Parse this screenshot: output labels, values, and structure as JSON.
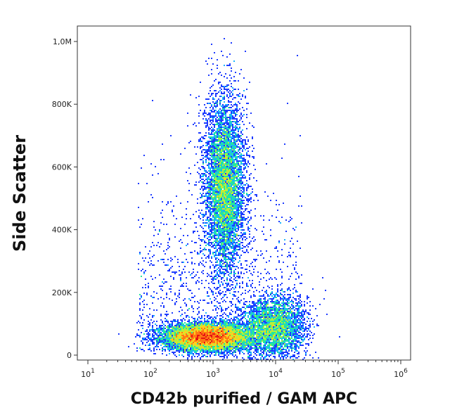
{
  "chart_data": {
    "type": "scatter",
    "subtype": "flow-cytometry-density-dot-plot",
    "xlabel": "CD42b purified / GAM APC",
    "ylabel": "Side Scatter",
    "x_scale": "log",
    "y_scale": "linear",
    "xlim": [
      10,
      1000000
    ],
    "ylim": [
      0,
      1050000
    ],
    "x_ticks": [
      {
        "value": 10,
        "base": "10",
        "exp": "1"
      },
      {
        "value": 100,
        "base": "10",
        "exp": "2"
      },
      {
        "value": 1000,
        "base": "10",
        "exp": "3"
      },
      {
        "value": 10000,
        "base": "10",
        "exp": "4"
      },
      {
        "value": 100000,
        "base": "10",
        "exp": "5"
      },
      {
        "value": 1000000,
        "base": "10",
        "exp": "6"
      }
    ],
    "y_ticks": [
      {
        "value": 0,
        "label": "0"
      },
      {
        "value": 200000,
        "label": "200K"
      },
      {
        "value": 400000,
        "label": "400K"
      },
      {
        "value": 600000,
        "label": "600K"
      },
      {
        "value": 800000,
        "label": "800K"
      },
      {
        "value": 1000000,
        "label": "1,0M"
      }
    ],
    "populations": [
      {
        "center_x": 800,
        "center_y": 60000,
        "spread_log_x": 0.35,
        "spread_y": 22000,
        "density": "very high"
      },
      {
        "center_x": 1500,
        "center_y": 540000,
        "spread_log_x": 0.16,
        "spread_y": 140000,
        "density": "high"
      },
      {
        "center_x": 9000,
        "center_y": 90000,
        "spread_log_x": 0.25,
        "spread_y": 50000,
        "density": "medium"
      }
    ],
    "color_scale": [
      "#0a0a8c",
      "#1e3cff",
      "#19b4ff",
      "#23e6a0",
      "#b4f03c",
      "#ffd21e",
      "#ff7814",
      "#e61414"
    ],
    "grid": false,
    "legend": "none"
  }
}
